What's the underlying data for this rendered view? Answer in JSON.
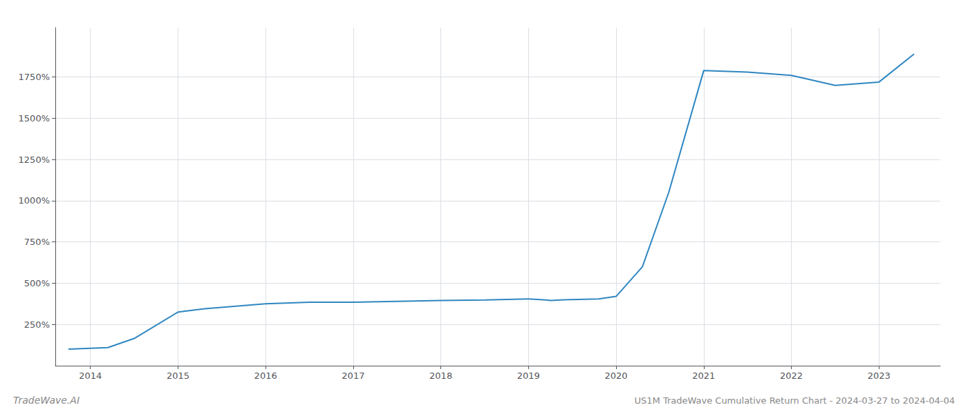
{
  "chart_data": {
    "type": "line",
    "title": "US1M TradeWave Cumulative Return Chart - 2024-03-27 to 2024-04-04",
    "annotations": [
      "TradeWave.AI"
    ],
    "x": [
      2013.75,
      2014.2,
      2014.5,
      2015.0,
      2015.3,
      2016.0,
      2016.5,
      2017.0,
      2017.5,
      2018.0,
      2018.5,
      2019.0,
      2019.1,
      2019.2,
      2019.25,
      2019.4,
      2019.8,
      2020.0,
      2020.3,
      2020.6,
      2021.0,
      2021.5,
      2022.0,
      2022.5,
      2023.0,
      2023.4
    ],
    "values": [
      100,
      110,
      165,
      325,
      345,
      375,
      385,
      385,
      390,
      395,
      398,
      405,
      402,
      398,
      395,
      400,
      405,
      420,
      600,
      1050,
      1790,
      1780,
      1760,
      1700,
      1720,
      1890
    ],
    "color": "#2e86c1",
    "xlim": [
      2013.6,
      2023.7
    ],
    "xticks": [
      2014,
      2015,
      2016,
      2017,
      2018,
      2019,
      2020,
      2021,
      2022,
      2023
    ],
    "ylim": [
      0,
      2050
    ],
    "yticks": [
      {
        "value": 250,
        "label": "250%"
      },
      {
        "value": 500,
        "label": "500%"
      },
      {
        "value": 750,
        "label": "750%"
      },
      {
        "value": 1000,
        "label": "1000%"
      },
      {
        "value": 1250,
        "label": "1250%"
      },
      {
        "value": 1500,
        "label": "1500%"
      },
      {
        "value": 1750,
        "label": "1750%"
      }
    ],
    "grid": true
  }
}
